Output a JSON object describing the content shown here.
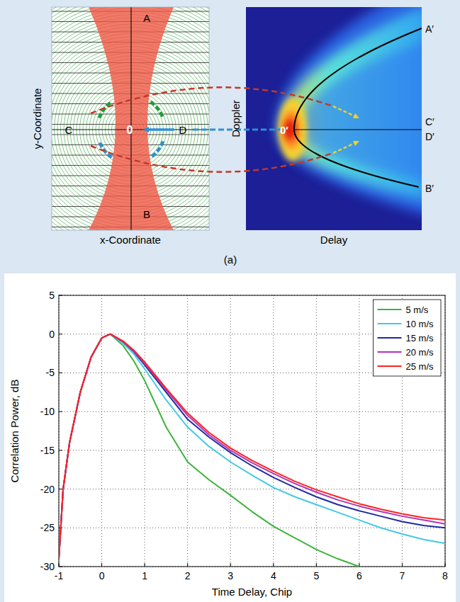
{
  "figure_label": "(a)",
  "diagram": {
    "left_panel": {
      "x_label": "x-Coordinate",
      "y_label": "y-Coordinate",
      "labels": [
        "A",
        "B",
        "C",
        "D"
      ],
      "origin": "0"
    },
    "right_panel": {
      "x_label": "Delay",
      "y_label": "Doppler",
      "labels": [
        "A′",
        "B′",
        "C′",
        "D′"
      ],
      "origin": "0′"
    }
  },
  "chart_data": {
    "type": "line",
    "x_label": "Time Delay, Chip",
    "y_label": "Correlation Power, dB",
    "x": [
      -1,
      -0.9,
      -0.75,
      -0.5,
      -0.25,
      0,
      0.2,
      0.5,
      0.75,
      1,
      1.5,
      2,
      2.5,
      3,
      3.5,
      4,
      4.5,
      5,
      5.5,
      6,
      6.5,
      7,
      7.5,
      8
    ],
    "series": [
      {
        "name": "5 m/s",
        "color": "#3cb43c",
        "values": [
          -29,
          -20,
          -14,
          -7.5,
          -3,
          -0.5,
          0,
          -1.5,
          -3.5,
          -6,
          -12,
          -16.5,
          -18.8,
          -20.8,
          -22.9,
          -24.8,
          -26.3,
          -27.8,
          -29,
          -30,
          null,
          null,
          null,
          null
        ]
      },
      {
        "name": "10 m/s",
        "color": "#45c8e6",
        "values": [
          -29,
          -20,
          -14,
          -7.5,
          -3,
          -0.5,
          0,
          -1.2,
          -2.6,
          -4.5,
          -8.5,
          -12,
          -14.5,
          -16.5,
          -18.2,
          -19.8,
          -21,
          -22,
          -23,
          -24,
          -25,
          -25.8,
          -26.5,
          -27
        ]
      },
      {
        "name": "15 m/s",
        "color": "#1f2aa0",
        "values": [
          -29,
          -20,
          -14,
          -7.5,
          -3,
          -0.5,
          0,
          -1.0,
          -2.3,
          -4.0,
          -7.5,
          -11,
          -13.3,
          -15.3,
          -17,
          -18.5,
          -19.8,
          -21,
          -22,
          -22.8,
          -23.5,
          -24.2,
          -24.7,
          -25
        ]
      },
      {
        "name": "20 m/s",
        "color": "#b035b8",
        "values": [
          -29,
          -20,
          -14,
          -7.5,
          -3,
          -0.5,
          0,
          -1.0,
          -2.2,
          -3.8,
          -7.2,
          -10.5,
          -13,
          -15,
          -16.6,
          -18,
          -19.3,
          -20.4,
          -21.4,
          -22.2,
          -22.9,
          -23.5,
          -24,
          -24.5
        ]
      },
      {
        "name": "25 m/s",
        "color": "#ff2222",
        "values": [
          -29,
          -20,
          -14,
          -7.5,
          -3,
          -0.5,
          0,
          -0.9,
          -2.1,
          -3.6,
          -7,
          -10.2,
          -12.7,
          -14.7,
          -16.3,
          -17.7,
          -19,
          -20.1,
          -21,
          -21.9,
          -22.6,
          -23.2,
          -23.7,
          -24
        ]
      }
    ],
    "xlim": [
      -1,
      8
    ],
    "ylim": [
      -30,
      5
    ],
    "xticks": [
      -1,
      0,
      1,
      2,
      3,
      4,
      5,
      6,
      7,
      8
    ],
    "yticks": [
      -30,
      -25,
      -20,
      -15,
      -10,
      -5,
      0,
      5
    ],
    "grid": true,
    "legend": "upper right"
  }
}
